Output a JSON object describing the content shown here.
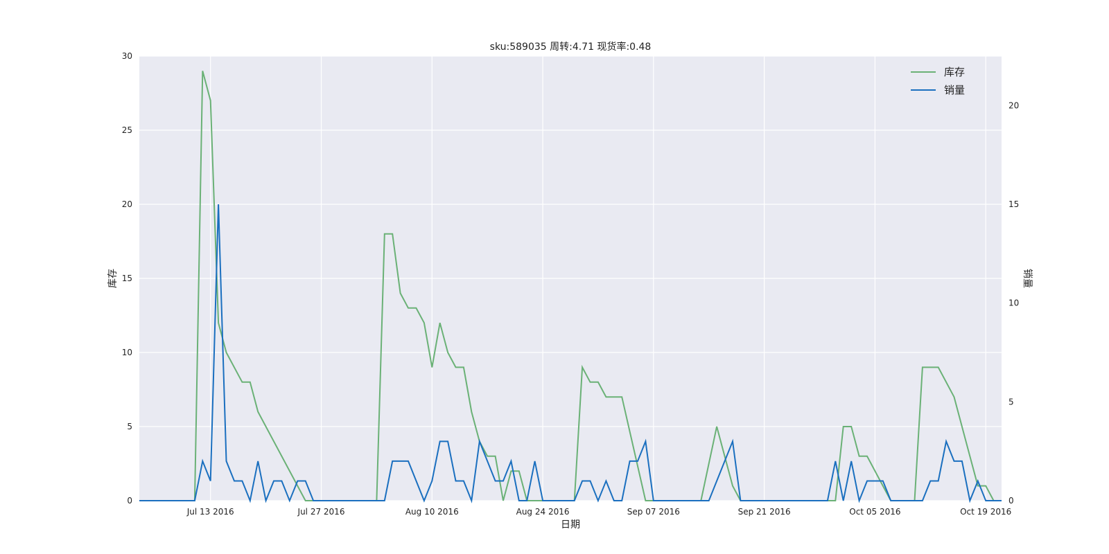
{
  "chart_data": {
    "type": "line",
    "title": "sku:589035 周转:4.71 现货率:0.48",
    "xlabel": "日期",
    "ylabel_left": "库存",
    "ylabel_right": "销量",
    "x_start": "2016-07-04",
    "x_end": "2016-10-21",
    "xticks": [
      "Jul 13 2016",
      "Jul 27 2016",
      "Aug 10 2016",
      "Aug 24 2016",
      "Sep 07 2016",
      "Sep 21 2016",
      "Oct 05 2016",
      "Oct 19 2016"
    ],
    "ylim_left": [
      0,
      30
    ],
    "yticks_left": [
      "0",
      "5",
      "10",
      "15",
      "20",
      "25",
      "30"
    ],
    "ylim_right": [
      0,
      22.5
    ],
    "yticks_right": [
      "0",
      "5",
      "10",
      "15",
      "20"
    ],
    "grid": true,
    "legend_position": "top-right",
    "series": [
      {
        "name": "库存",
        "axis": "left",
        "color": "#6ab176",
        "points": [
          [
            "2016-07-04",
            0
          ],
          [
            "2016-07-11",
            0
          ],
          [
            "2016-07-12",
            29
          ],
          [
            "2016-07-13",
            27
          ],
          [
            "2016-07-14",
            12
          ],
          [
            "2016-07-15",
            10
          ],
          [
            "2016-07-17",
            8
          ],
          [
            "2016-07-18",
            8
          ],
          [
            "2016-07-19",
            6
          ],
          [
            "2016-07-25",
            0
          ],
          [
            "2016-08-03",
            0
          ],
          [
            "2016-08-04",
            18
          ],
          [
            "2016-08-05",
            18
          ],
          [
            "2016-08-06",
            14
          ],
          [
            "2016-08-07",
            13
          ],
          [
            "2016-08-08",
            13
          ],
          [
            "2016-08-09",
            12
          ],
          [
            "2016-08-10",
            9
          ],
          [
            "2016-08-11",
            12
          ],
          [
            "2016-08-12",
            10
          ],
          [
            "2016-08-13",
            9
          ],
          [
            "2016-08-14",
            9
          ],
          [
            "2016-08-15",
            6
          ],
          [
            "2016-08-16",
            4
          ],
          [
            "2016-08-17",
            3
          ],
          [
            "2016-08-18",
            3
          ],
          [
            "2016-08-19",
            0
          ],
          [
            "2016-08-20",
            2
          ],
          [
            "2016-08-21",
            2
          ],
          [
            "2016-08-22",
            0
          ],
          [
            "2016-08-28",
            0
          ],
          [
            "2016-08-29",
            9
          ],
          [
            "2016-08-30",
            8
          ],
          [
            "2016-08-31",
            8
          ],
          [
            "2016-09-01",
            7
          ],
          [
            "2016-09-03",
            7
          ],
          [
            "2016-09-06",
            0
          ],
          [
            "2016-09-13",
            0
          ],
          [
            "2016-09-15",
            5
          ],
          [
            "2016-09-17",
            1
          ],
          [
            "2016-09-18",
            0
          ],
          [
            "2016-09-30",
            0
          ],
          [
            "2016-10-01",
            5
          ],
          [
            "2016-10-02",
            5
          ],
          [
            "2016-10-03",
            3
          ],
          [
            "2016-10-04",
            3
          ],
          [
            "2016-10-06",
            1
          ],
          [
            "2016-10-07",
            0
          ],
          [
            "2016-10-10",
            0
          ],
          [
            "2016-10-11",
            9
          ],
          [
            "2016-10-13",
            9
          ],
          [
            "2016-10-15",
            7
          ],
          [
            "2016-10-17",
            3
          ],
          [
            "2016-10-18",
            1
          ],
          [
            "2016-10-19",
            1
          ],
          [
            "2016-10-20",
            0
          ],
          [
            "2016-10-21",
            0
          ]
        ]
      },
      {
        "name": "销量",
        "axis": "right",
        "color": "#1a6fbf",
        "points": [
          [
            "2016-07-04",
            0
          ],
          [
            "2016-07-11",
            0
          ],
          [
            "2016-07-12",
            2
          ],
          [
            "2016-07-13",
            1
          ],
          [
            "2016-07-14",
            15
          ],
          [
            "2016-07-15",
            2
          ],
          [
            "2016-07-16",
            1
          ],
          [
            "2016-07-17",
            1
          ],
          [
            "2016-07-18",
            0
          ],
          [
            "2016-07-19",
            2
          ],
          [
            "2016-07-20",
            0
          ],
          [
            "2016-07-21",
            1
          ],
          [
            "2016-07-22",
            1
          ],
          [
            "2016-07-23",
            0
          ],
          [
            "2016-07-24",
            1
          ],
          [
            "2016-07-25",
            1
          ],
          [
            "2016-07-26",
            0
          ],
          [
            "2016-08-04",
            0
          ],
          [
            "2016-08-05",
            2
          ],
          [
            "2016-08-06",
            2
          ],
          [
            "2016-08-07",
            2
          ],
          [
            "2016-08-09",
            0
          ],
          [
            "2016-08-10",
            1
          ],
          [
            "2016-08-11",
            3
          ],
          [
            "2016-08-12",
            3
          ],
          [
            "2016-08-13",
            1
          ],
          [
            "2016-08-14",
            1
          ],
          [
            "2016-08-15",
            0
          ],
          [
            "2016-08-16",
            3
          ],
          [
            "2016-08-18",
            1
          ],
          [
            "2016-08-19",
            1
          ],
          [
            "2016-08-20",
            2
          ],
          [
            "2016-08-21",
            0
          ],
          [
            "2016-08-22",
            0
          ],
          [
            "2016-08-23",
            2
          ],
          [
            "2016-08-24",
            0
          ],
          [
            "2016-08-28",
            0
          ],
          [
            "2016-08-29",
            1
          ],
          [
            "2016-08-30",
            1
          ],
          [
            "2016-08-31",
            0
          ],
          [
            "2016-09-01",
            1
          ],
          [
            "2016-09-02",
            0
          ],
          [
            "2016-09-03",
            0
          ],
          [
            "2016-09-04",
            2
          ],
          [
            "2016-09-05",
            2
          ],
          [
            "2016-09-06",
            3
          ],
          [
            "2016-09-07",
            0
          ],
          [
            "2016-09-14",
            0
          ],
          [
            "2016-09-17",
            3
          ],
          [
            "2016-09-18",
            0
          ],
          [
            "2016-09-29",
            0
          ],
          [
            "2016-09-30",
            2
          ],
          [
            "2016-10-01",
            0
          ],
          [
            "2016-10-02",
            2
          ],
          [
            "2016-10-03",
            0
          ],
          [
            "2016-10-04",
            1
          ],
          [
            "2016-10-06",
            1
          ],
          [
            "2016-10-07",
            0
          ],
          [
            "2016-10-11",
            0
          ],
          [
            "2016-10-12",
            1
          ],
          [
            "2016-10-13",
            1
          ],
          [
            "2016-10-14",
            3
          ],
          [
            "2016-10-15",
            2
          ],
          [
            "2016-10-16",
            2
          ],
          [
            "2016-10-17",
            0
          ],
          [
            "2016-10-18",
            1
          ],
          [
            "2016-10-19",
            0
          ],
          [
            "2016-10-21",
            0
          ]
        ]
      }
    ]
  }
}
